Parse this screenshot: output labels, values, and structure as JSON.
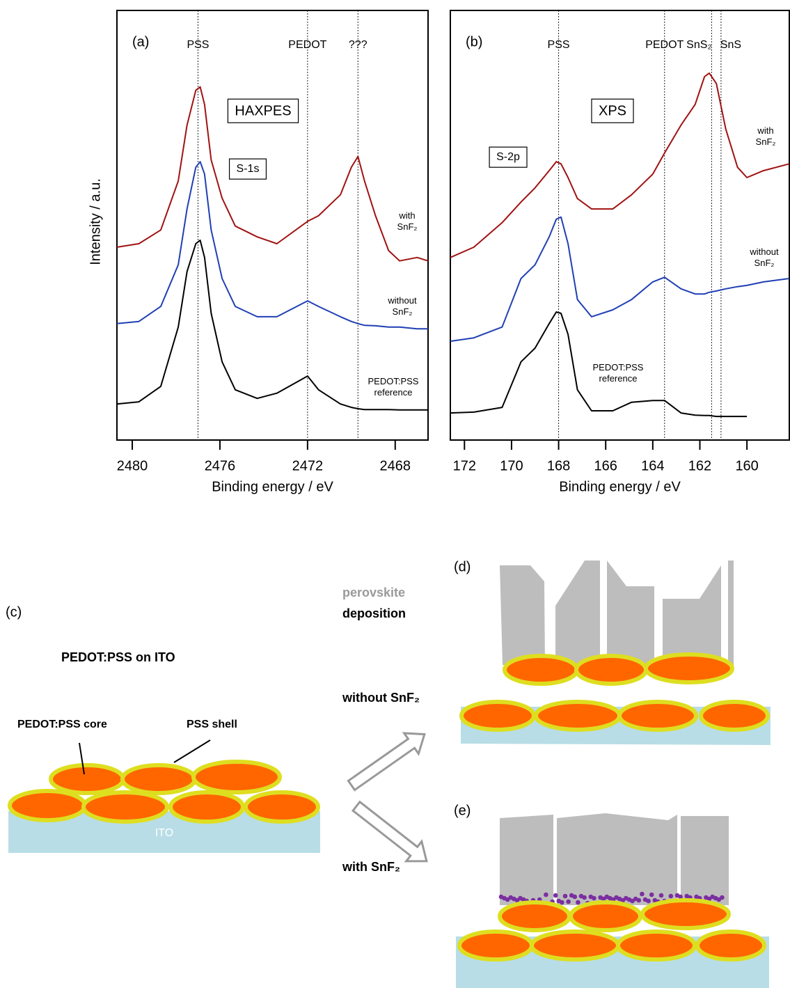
{
  "chart_data": [
    {
      "type": "line",
      "panel_label": "(a)",
      "technique": "HAXPES",
      "core_level": "S-1s",
      "x_label": "Binding energy / eV",
      "y_label": "Intensity / a.u.",
      "xlim": [
        2480.7,
        2466.5
      ],
      "xticks": [
        2480,
        2476,
        2472,
        2468
      ],
      "ylim": [
        0,
        100
      ],
      "reference_lines": [
        {
          "label": "PSS",
          "x": 2477
        },
        {
          "label": "PEDOT",
          "x": 2472
        },
        {
          "label": "???",
          "x": 2469.7
        }
      ],
      "x": [
        2480.7,
        2479.7,
        2478.7,
        2477.9,
        2477.5,
        2477.1,
        2476.9,
        2476.7,
        2476.4,
        2475.9,
        2475.3,
        2474.3,
        2473.4,
        2472.0,
        2471.5,
        2470.5,
        2470.0,
        2469.7,
        2469.4,
        2468.9,
        2468.3,
        2467.8,
        2467.0,
        2466.5
      ],
      "series": [
        {
          "name": "with SnF₂",
          "color": "#a01212",
          "values": [
            44.9,
            45.7,
            48.9,
            60.3,
            73.3,
            81.4,
            82.2,
            78.1,
            65.2,
            56.3,
            49.8,
            47.3,
            45.7,
            50.9,
            52.2,
            57.1,
            63.5,
            66.0,
            60.3,
            52.2,
            44.1,
            41.7,
            42.5,
            41.7
          ]
        },
        {
          "name": "without SnF₂",
          "color": "#1f3fb4",
          "values": [
            27.1,
            27.6,
            31.1,
            40.8,
            53.8,
            63.5,
            64.8,
            61.9,
            48.9,
            37.6,
            31.1,
            28.7,
            28.7,
            32.4,
            31.1,
            28.7,
            27.6,
            27.1,
            26.7,
            26.6,
            26.3,
            26.3,
            25.9,
            25.9
          ]
        },
        {
          "name": "PEDOT:PSS reference",
          "color": "#000000",
          "values": [
            8.4,
            8.9,
            12.5,
            26.3,
            39.2,
            45.7,
            46.5,
            42.5,
            29.5,
            18.2,
            11.7,
            9.7,
            10.9,
            14.9,
            11.7,
            8.4,
            7.6,
            7.3,
            7.1,
            7.1,
            7.1,
            7.0,
            7.0,
            7.0
          ]
        }
      ]
    },
    {
      "type": "line",
      "panel_label": "(b)",
      "technique": "XPS",
      "core_level": "S-2p",
      "x_label": "Binding energy / eV",
      "xlim": [
        172.6,
        158.2
      ],
      "xticks": [
        172,
        170,
        168,
        166,
        164,
        162,
        160
      ],
      "ylim": [
        0,
        100
      ],
      "reference_lines": [
        {
          "label": "PSS",
          "x": 168
        },
        {
          "label": "PEDOT",
          "x": 163.5
        },
        {
          "label": "SnS₂",
          "x": 161.5
        },
        {
          "label": "SnS",
          "x": 161.1
        }
      ],
      "x": [
        172.6,
        171.6,
        170.4,
        169.6,
        169.0,
        168.4,
        168.1,
        167.9,
        167.6,
        167.2,
        166.6,
        165.7,
        164.9,
        164.0,
        163.5,
        162.8,
        162.2,
        161.8,
        161.6,
        161.3,
        160.9,
        160.4,
        160.0,
        159.3,
        158.2
      ],
      "series": [
        {
          "name": "with SnF₂",
          "color": "#a01212",
          "values": [
            42.5,
            44.9,
            50.6,
            55.4,
            58.7,
            62.7,
            64.8,
            64.3,
            61.1,
            56.2,
            53.8,
            53.8,
            57.1,
            61.9,
            66.8,
            73.3,
            78.1,
            84.6,
            85.4,
            83.0,
            72.4,
            63.5,
            61.1,
            62.7,
            64.3
          ]
        },
        {
          "name": "without SnF₂",
          "color": "#1f3fb4",
          "values": [
            23.0,
            23.8,
            26.3,
            37.6,
            40.8,
            47.3,
            51.4,
            51.9,
            45.7,
            32.7,
            28.7,
            30.3,
            32.7,
            36.8,
            37.9,
            35.2,
            34.0,
            34.0,
            34.4,
            34.7,
            35.2,
            35.7,
            36.0,
            36.8,
            37.6
          ]
        },
        {
          "name": "PEDOT:PSS reference",
          "color": "#000000",
          "values": [
            6.3,
            6.5,
            7.6,
            18.2,
            21.4,
            27.1,
            29.8,
            29.5,
            24.6,
            11.7,
            6.8,
            6.8,
            8.8,
            9.2,
            9.2,
            6.3,
            5.8,
            5.7,
            5.7,
            5.5,
            5.5,
            5.5,
            5.5,
            null,
            null
          ]
        }
      ]
    }
  ],
  "diagram": {
    "panel_c": {
      "label": "(c)",
      "title": "PEDOT:PSS on ITO",
      "core_label": "PEDOT:PSS core",
      "shell_label": "PSS shell",
      "substrate_label": "ITO"
    },
    "step": {
      "material": "perovskite",
      "action": "deposition"
    },
    "panel_d": {
      "label": "(d)",
      "condition": "without SnF₂"
    },
    "panel_e": {
      "label": "(e)",
      "condition": "with SnF₂"
    }
  }
}
